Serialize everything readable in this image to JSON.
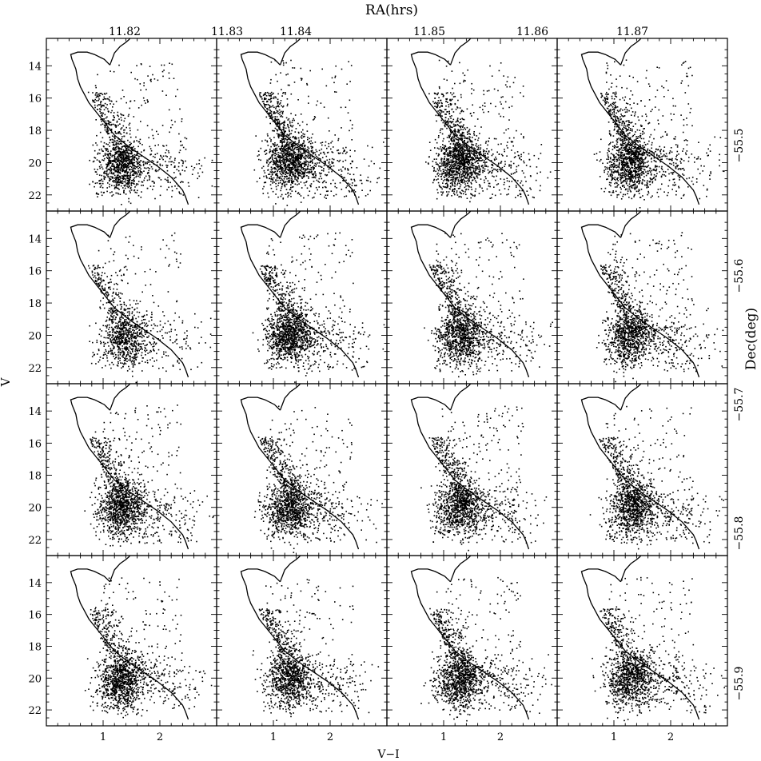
{
  "figure": {
    "top_axis_label": "RA(hrs)",
    "right_axis_label": "Dec(deg)",
    "left_axis_label": "V",
    "bottom_axis_label": "V−I"
  },
  "chart_data": {
    "type": "scatter",
    "title": "",
    "grid": false,
    "layout": "4x4 grid of color-magnitude diagrams",
    "xlabel": "V−I",
    "ylabel": "V",
    "xlim": [
      0,
      3.0
    ],
    "ylim": [
      23.0,
      12.3
    ],
    "y_inverted": true,
    "x_ticklabels": [
      "1",
      "2"
    ],
    "y_ticklabels": [
      "14",
      "16",
      "18",
      "20",
      "22"
    ],
    "ra_axis": {
      "label": "RA(hrs)",
      "ticklabels": [
        "11.82",
        "11.83",
        "11.84",
        "11.85",
        "11.86",
        "11.87"
      ]
    },
    "dec_axis": {
      "label": "Dec(deg)",
      "ticklabels": [
        "−55.5",
        "−55.6",
        "−55.7",
        "−55.8",
        "−55.9"
      ]
    },
    "isochrone": {
      "name": "",
      "x": [
        1.12,
        1.02,
        0.85,
        0.72,
        0.55,
        0.43,
        0.45,
        0.52,
        0.55,
        0.6,
        0.75,
        1.0,
        1.2,
        1.45,
        1.7,
        1.95,
        2.2,
        2.4,
        2.45,
        2.5
      ],
      "y": [
        13.95,
        13.6,
        13.3,
        13.15,
        13.15,
        13.3,
        13.6,
        14.2,
        14.8,
        15.3,
        16.3,
        17.4,
        18.3,
        19.0,
        19.6,
        20.2,
        20.9,
        21.7,
        22.1,
        22.6
      ]
    },
    "red_giant_branch": {
      "x": [
        1.12,
        1.2,
        1.3,
        1.4,
        1.45,
        1.5
      ],
      "y": [
        13.95,
        13.2,
        12.8,
        12.55,
        12.4,
        12.2
      ]
    },
    "panels": [
      {
        "row": 1,
        "col": 1,
        "points": 1350,
        "core_color": 1.3,
        "core_mag": 20.1
      },
      {
        "row": 1,
        "col": 2,
        "points": 1600,
        "core_color": 1.25,
        "core_mag": 20.0
      },
      {
        "row": 1,
        "col": 3,
        "points": 1650,
        "core_color": 1.25,
        "core_mag": 20.0
      },
      {
        "row": 1,
        "col": 4,
        "points": 1550,
        "core_color": 1.25,
        "core_mag": 20.0
      },
      {
        "row": 2,
        "col": 1,
        "points": 1100,
        "core_color": 1.35,
        "core_mag": 20.2
      },
      {
        "row": 2,
        "col": 2,
        "points": 1600,
        "core_color": 1.25,
        "core_mag": 20.0
      },
      {
        "row": 2,
        "col": 3,
        "points": 1500,
        "core_color": 1.25,
        "core_mag": 20.0
      },
      {
        "row": 2,
        "col": 4,
        "points": 1450,
        "core_color": 1.25,
        "core_mag": 20.1
      },
      {
        "row": 3,
        "col": 1,
        "points": 1500,
        "core_color": 1.3,
        "core_mag": 20.0
      },
      {
        "row": 3,
        "col": 2,
        "points": 1500,
        "core_color": 1.25,
        "core_mag": 20.0
      },
      {
        "row": 3,
        "col": 3,
        "points": 1500,
        "core_color": 1.25,
        "core_mag": 20.0
      },
      {
        "row": 3,
        "col": 4,
        "points": 1450,
        "core_color": 1.3,
        "core_mag": 20.0
      },
      {
        "row": 4,
        "col": 1,
        "points": 1450,
        "core_color": 1.3,
        "core_mag": 20.2
      },
      {
        "row": 4,
        "col": 2,
        "points": 1350,
        "core_color": 1.25,
        "core_mag": 20.0
      },
      {
        "row": 4,
        "col": 3,
        "points": 1500,
        "core_color": 1.25,
        "core_mag": 20.1
      },
      {
        "row": 4,
        "col": 4,
        "points": 1400,
        "core_color": 1.25,
        "core_mag": 20.0
      }
    ]
  }
}
